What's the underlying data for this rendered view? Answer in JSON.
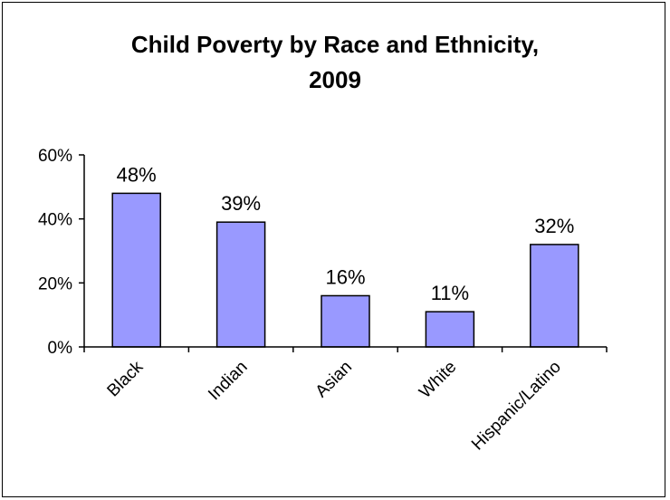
{
  "chart": {
    "title_line1": "Child Poverty by Race and Ethnicity,",
    "title_line2": "2009"
  },
  "chart_data": {
    "type": "bar",
    "title": "Child Poverty by Race and Ethnicity, 2009",
    "categories": [
      "Black",
      "Indian",
      "Asian",
      "White",
      "Hispanic/Latino"
    ],
    "values": [
      0.48,
      0.39,
      0.16,
      0.11,
      0.32
    ],
    "data_labels": [
      "48%",
      "39%",
      "16%",
      "11%",
      "32%"
    ],
    "xlabel": "",
    "ylabel": "",
    "ylim": [
      0,
      0.6
    ],
    "yticks": [
      0,
      0.2,
      0.4,
      0.6
    ],
    "ytick_labels": [
      "0%",
      "20%",
      "40%",
      "60%"
    ],
    "grid": false,
    "legend": "none",
    "bar_color": "#9999ff",
    "bar_edge_color": "#000000"
  }
}
